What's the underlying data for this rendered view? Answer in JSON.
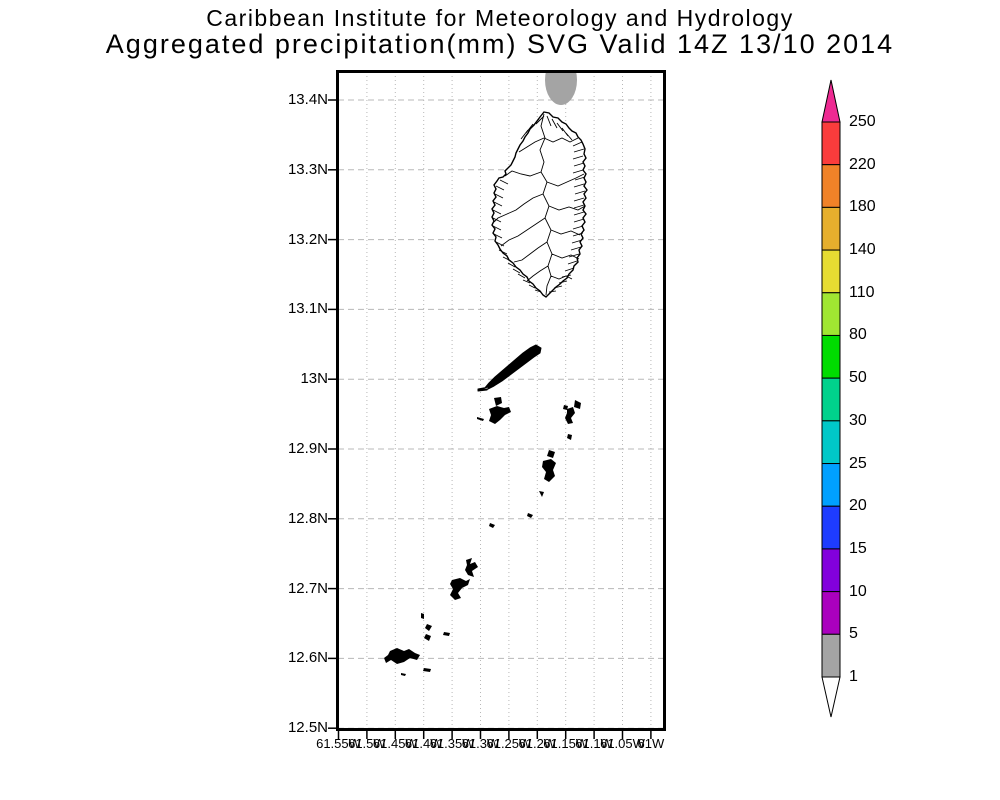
{
  "title": {
    "line1": "Caribbean Institute for Meteorology and Hydrology",
    "line2": "Aggregated precipitation(mm) SVG Valid 14Z 13/10 2014"
  },
  "map": {
    "y_axis_labels": [
      "13.4N",
      "13.3N",
      "13.2N",
      "13.1N",
      "13N",
      "12.9N",
      "12.8N",
      "12.7N",
      "12.6N",
      "12.5N"
    ],
    "x_axis_labels": [
      "61.55W",
      "61.5W",
      "61.45W",
      "61.4W",
      "61.35W",
      "61.3W",
      "61.25W",
      "61.2W",
      "61.15W",
      "61.1W",
      "61.05W",
      "61W"
    ],
    "shaded_regions": [
      {
        "value_range_mm": "1-5",
        "color": "#a4a4a4",
        "approx_location": "just north of the main island, clipped by top frame"
      }
    ]
  },
  "colorbar": {
    "tick_labels": [
      "250",
      "220",
      "180",
      "140",
      "110",
      "80",
      "50",
      "30",
      "25",
      "20",
      "15",
      "10",
      "5",
      "1"
    ],
    "colors_top_to_bottom": [
      "#ee2a92",
      "#fa3c3c",
      "#f08228",
      "#e6af2d",
      "#e6dc32",
      "#a0e632",
      "#00dc00",
      "#00d28c",
      "#00c8c8",
      "#00a0ff",
      "#1e3cff",
      "#8200dc",
      "#aa00be",
      "#a4a4a4",
      "#ffffff"
    ]
  }
}
